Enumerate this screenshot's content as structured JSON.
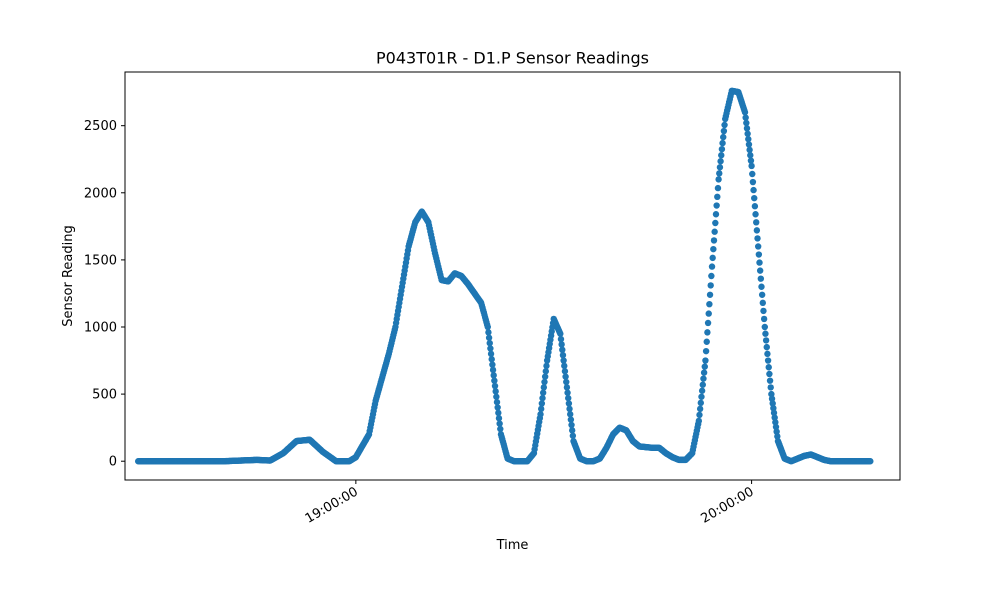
{
  "chart_data": {
    "type": "scatter",
    "title": "P043T01R - D1.P Sensor Readings",
    "xlabel": "Time",
    "ylabel": "Sensor Reading",
    "xlim": [
      "18:25:00",
      "20:22:30"
    ],
    "ylim": [
      -140,
      2900
    ],
    "y_ticks": [
      0,
      500,
      1000,
      1500,
      2000,
      2500
    ],
    "x_ticks": [
      "19:00:00",
      "20:00:00"
    ],
    "grid": false,
    "legend": "none",
    "marker_color": "#1f77b4",
    "series": [
      {
        "x": [
          "18:27:00",
          "18:30:00",
          "18:35:00",
          "18:40:00",
          "18:45:00",
          "18:47:00",
          "18:49:00",
          "18:51:00",
          "18:53:00",
          "18:55:00",
          "18:57:00",
          "18:59:00",
          "19:00:00",
          "19:02:00",
          "19:03:00",
          "19:05:00",
          "19:06:00",
          "19:07:00",
          "19:08:00",
          "19:09:00",
          "19:10:00",
          "19:11:00",
          "19:12:00",
          "19:13:00",
          "19:14:00",
          "19:15:00",
          "19:16:00",
          "19:17:00",
          "19:19:00",
          "19:20:00",
          "19:21:00",
          "19:22:00",
          "19:23:00",
          "19:24:00",
          "19:25:00",
          "19:26:00",
          "19:27:00",
          "19:28:00",
          "19:29:00",
          "19:30:00",
          "19:31:00",
          "19:32:00",
          "19:33:00",
          "19:34:00",
          "19:35:00",
          "19:36:00",
          "19:37:00",
          "19:38:00",
          "19:39:00",
          "19:40:00",
          "19:41:00",
          "19:42:00",
          "19:43:00",
          "19:45:00",
          "19:46:00",
          "19:47:00",
          "19:48:00",
          "19:49:00",
          "19:50:00",
          "19:51:00",
          "19:52:00",
          "19:53:00",
          "19:54:00",
          "19:55:00",
          "19:56:00",
          "19:57:00",
          "19:58:00",
          "19:59:00",
          "20:00:00",
          "20:01:00",
          "20:02:00",
          "20:03:00",
          "20:04:00",
          "20:05:00",
          "20:06:00",
          "20:07:00",
          "20:08:00",
          "20:09:00",
          "20:10:00",
          "20:11:00",
          "20:12:00",
          "20:13:00",
          "20:15:00",
          "20:18:00"
        ],
        "y": [
          0,
          0,
          0,
          0,
          10,
          5,
          60,
          150,
          160,
          70,
          0,
          0,
          30,
          200,
          450,
          800,
          1000,
          1300,
          1600,
          1780,
          1860,
          1780,
          1550,
          1350,
          1340,
          1400,
          1380,
          1320,
          1180,
          1000,
          600,
          200,
          20,
          0,
          0,
          0,
          60,
          350,
          750,
          1060,
          950,
          550,
          150,
          20,
          0,
          0,
          20,
          100,
          200,
          250,
          230,
          150,
          110,
          100,
          100,
          60,
          30,
          10,
          10,
          60,
          300,
          750,
          1450,
          2100,
          2550,
          2760,
          2750,
          2600,
          2200,
          1600,
          1000,
          500,
          150,
          20,
          0,
          20,
          40,
          50,
          30,
          10,
          0,
          0,
          0,
          0
        ]
      }
    ]
  }
}
